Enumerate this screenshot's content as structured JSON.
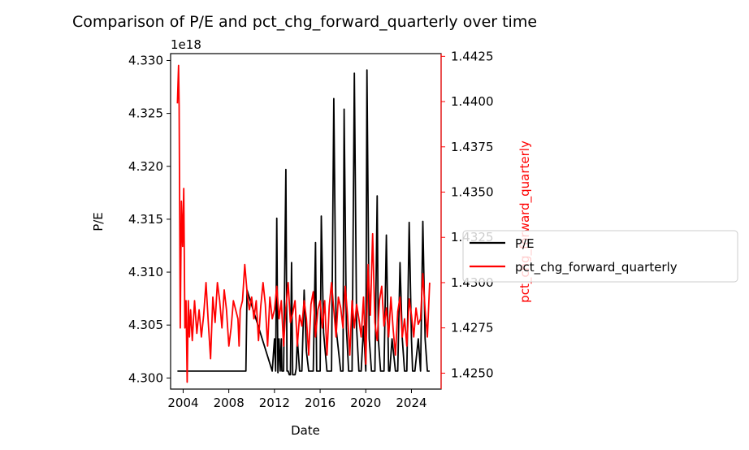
{
  "chart_data": {
    "type": "line",
    "title": "Comparison of P/E and pct_chg_forward_quarterly over time",
    "xlabel": "Date",
    "ylabel_left": "P/E",
    "ylabel_right": "pct_chg_forward_quarterly",
    "left_offset_label": "1e18",
    "xlim": [
      2002.9,
      2026.6
    ],
    "ylim_left": [
      4.29895,
      4.33065
    ],
    "ylim_right": [
      1.42412,
      1.44265
    ],
    "x_ticks": [
      2004,
      2008,
      2012,
      2016,
      2020,
      2024
    ],
    "x_tick_labels": [
      "2004",
      "2008",
      "2012",
      "2016",
      "2020",
      "2024"
    ],
    "y_left_ticks": [
      4.3,
      4.305,
      4.31,
      4.315,
      4.32,
      4.325,
      4.33
    ],
    "y_left_tick_labels": [
      "4.300",
      "4.305",
      "4.310",
      "4.315",
      "4.320",
      "4.325",
      "4.330"
    ],
    "y_right_ticks": [
      1.425,
      1.4275,
      1.43,
      1.4325,
      1.435,
      1.4375,
      1.44,
      1.4425
    ],
    "y_right_tick_labels": [
      "1.4250",
      "1.4275",
      "1.4300",
      "1.4325",
      "1.4350",
      "1.4375",
      "1.4400",
      "1.4425"
    ],
    "legend_placement": "right, outside axes",
    "grid": false,
    "series": [
      {
        "name": "P/E",
        "axis": "left",
        "color": "#000000",
        "x": [
          2003.5,
          2009.5,
          2009.6,
          2011.8,
          2012.0,
          2012.1,
          2012.2,
          2012.3,
          2012.4,
          2012.5,
          2012.6,
          2012.65,
          2012.8,
          2013.0,
          2013.1,
          2013.2,
          2013.3,
          2013.4,
          2013.5,
          2013.6,
          2013.8,
          2013.9,
          2014.0,
          2014.2,
          2014.4,
          2014.6,
          2014.8,
          2015.0,
          2015.2,
          2015.4,
          2015.6,
          2015.7,
          2016.0,
          2016.1,
          2016.3,
          2016.6,
          2017.0,
          2017.2,
          2017.4,
          2017.8,
          2018.0,
          2018.1,
          2018.3,
          2018.5,
          2018.8,
          2019.0,
          2019.2,
          2019.4,
          2019.6,
          2019.8,
          2020.0,
          2020.1,
          2020.3,
          2020.5,
          2020.8,
          2021.0,
          2021.1,
          2021.3,
          2021.6,
          2021.8,
          2022.0,
          2022.1,
          2022.3,
          2022.6,
          2022.8,
          2023.0,
          2023.2,
          2023.4,
          2023.6,
          2023.8,
          2024.0,
          2024.1,
          2024.3,
          2024.6,
          2024.8,
          2025.0,
          2025.2,
          2025.4,
          2025.6
        ],
        "y": [
          4.30065,
          4.30065,
          4.3083,
          4.30065,
          4.3037,
          4.30065,
          4.3151,
          4.3005,
          4.3037,
          4.30065,
          4.3037,
          4.30065,
          4.30065,
          4.3197,
          4.30065,
          4.30065,
          4.3003,
          4.3003,
          4.3109,
          4.3003,
          4.3003,
          4.3009,
          4.3037,
          4.30065,
          4.30065,
          4.3083,
          4.3025,
          4.30065,
          4.30065,
          4.30065,
          4.3128,
          4.30065,
          4.30065,
          4.3153,
          4.3043,
          4.30065,
          4.30065,
          4.3264,
          4.3047,
          4.30065,
          4.30065,
          4.3254,
          4.3047,
          4.30065,
          4.30065,
          4.3288,
          4.3047,
          4.30065,
          4.30065,
          4.3049,
          4.30065,
          4.3291,
          4.3037,
          4.30065,
          4.30065,
          4.3172,
          4.3037,
          4.30065,
          4.30065,
          4.3135,
          4.30065,
          4.30065,
          4.3037,
          4.30065,
          4.30065,
          4.3109,
          4.3037,
          4.30065,
          4.30065,
          4.3147,
          4.3037,
          4.30065,
          4.30065,
          4.3037,
          4.30065,
          4.3148,
          4.3037,
          4.30065,
          4.30065
        ]
      },
      {
        "name": "pct_chg_forward_quarterly",
        "axis": "right",
        "color": "#ff0000",
        "x": [
          2003.5,
          2003.6,
          2003.65,
          2003.75,
          2003.85,
          2003.95,
          2004.05,
          2004.15,
          2004.25,
          2004.35,
          2004.45,
          2004.55,
          2004.65,
          2004.8,
          2005.0,
          2005.2,
          2005.4,
          2005.6,
          2005.8,
          2006.0,
          2006.2,
          2006.4,
          2006.6,
          2006.8,
          2007.0,
          2007.2,
          2007.4,
          2007.6,
          2007.8,
          2008.0,
          2008.2,
          2008.4,
          2008.6,
          2008.8,
          2008.9,
          2009.0,
          2009.2,
          2009.4,
          2009.6,
          2009.8,
          2010.0,
          2010.2,
          2010.4,
          2010.6,
          2010.8,
          2011.0,
          2011.2,
          2011.4,
          2011.6,
          2011.8,
          2012.0,
          2012.2,
          2012.4,
          2012.6,
          2012.8,
          2013.0,
          2013.2,
          2013.4,
          2013.6,
          2013.8,
          2014.0,
          2014.2,
          2014.4,
          2014.6,
          2014.8,
          2015.0,
          2015.2,
          2015.4,
          2015.6,
          2015.8,
          2016.0,
          2016.2,
          2016.4,
          2016.6,
          2016.8,
          2017.0,
          2017.2,
          2017.4,
          2017.6,
          2017.8,
          2018.0,
          2018.2,
          2018.4,
          2018.6,
          2018.8,
          2019.0,
          2019.2,
          2019.4,
          2019.6,
          2019.8,
          2020.0,
          2020.2,
          2020.4,
          2020.6,
          2020.8,
          2021.0,
          2021.2,
          2021.4,
          2021.6,
          2021.8,
          2022.0,
          2022.2,
          2022.4,
          2022.6,
          2022.8,
          2023.0,
          2023.2,
          2023.4,
          2023.6,
          2023.8,
          2024.0,
          2024.2,
          2024.4,
          2024.6,
          2024.8,
          2025.0,
          2025.2,
          2025.4,
          2025.6
        ],
        "y": [
          1.4399,
          1.442,
          1.4398,
          1.4275,
          1.4345,
          1.432,
          1.4352,
          1.4275,
          1.429,
          1.4245,
          1.429,
          1.427,
          1.4285,
          1.4268,
          1.429,
          1.4272,
          1.4285,
          1.427,
          1.4282,
          1.43,
          1.4278,
          1.4258,
          1.4292,
          1.4278,
          1.43,
          1.429,
          1.4275,
          1.4296,
          1.4285,
          1.4265,
          1.4275,
          1.429,
          1.4285,
          1.428,
          1.4265,
          1.4285,
          1.429,
          1.431,
          1.4295,
          1.4285,
          1.4292,
          1.428,
          1.429,
          1.4268,
          1.4287,
          1.43,
          1.4288,
          1.4265,
          1.4292,
          1.428,
          1.4285,
          1.4298,
          1.428,
          1.429,
          1.4265,
          1.4286,
          1.43,
          1.4278,
          1.4283,
          1.429,
          1.4265,
          1.4282,
          1.4276,
          1.429,
          1.428,
          1.426,
          1.4288,
          1.4295,
          1.427,
          1.4285,
          1.429,
          1.4275,
          1.429,
          1.426,
          1.4287,
          1.43,
          1.4285,
          1.427,
          1.4292,
          1.4286,
          1.4275,
          1.4298,
          1.4282,
          1.426,
          1.429,
          1.4275,
          1.4288,
          1.428,
          1.427,
          1.4292,
          1.4255,
          1.431,
          1.4282,
          1.4327,
          1.4278,
          1.4268,
          1.429,
          1.4298,
          1.4276,
          1.4286,
          1.427,
          1.4292,
          1.4274,
          1.426,
          1.4284,
          1.4292,
          1.427,
          1.428,
          1.4265,
          1.4291,
          1.4282,
          1.427,
          1.4286,
          1.4277,
          1.428,
          1.4305,
          1.4285,
          1.427,
          1.43
        ]
      }
    ]
  }
}
